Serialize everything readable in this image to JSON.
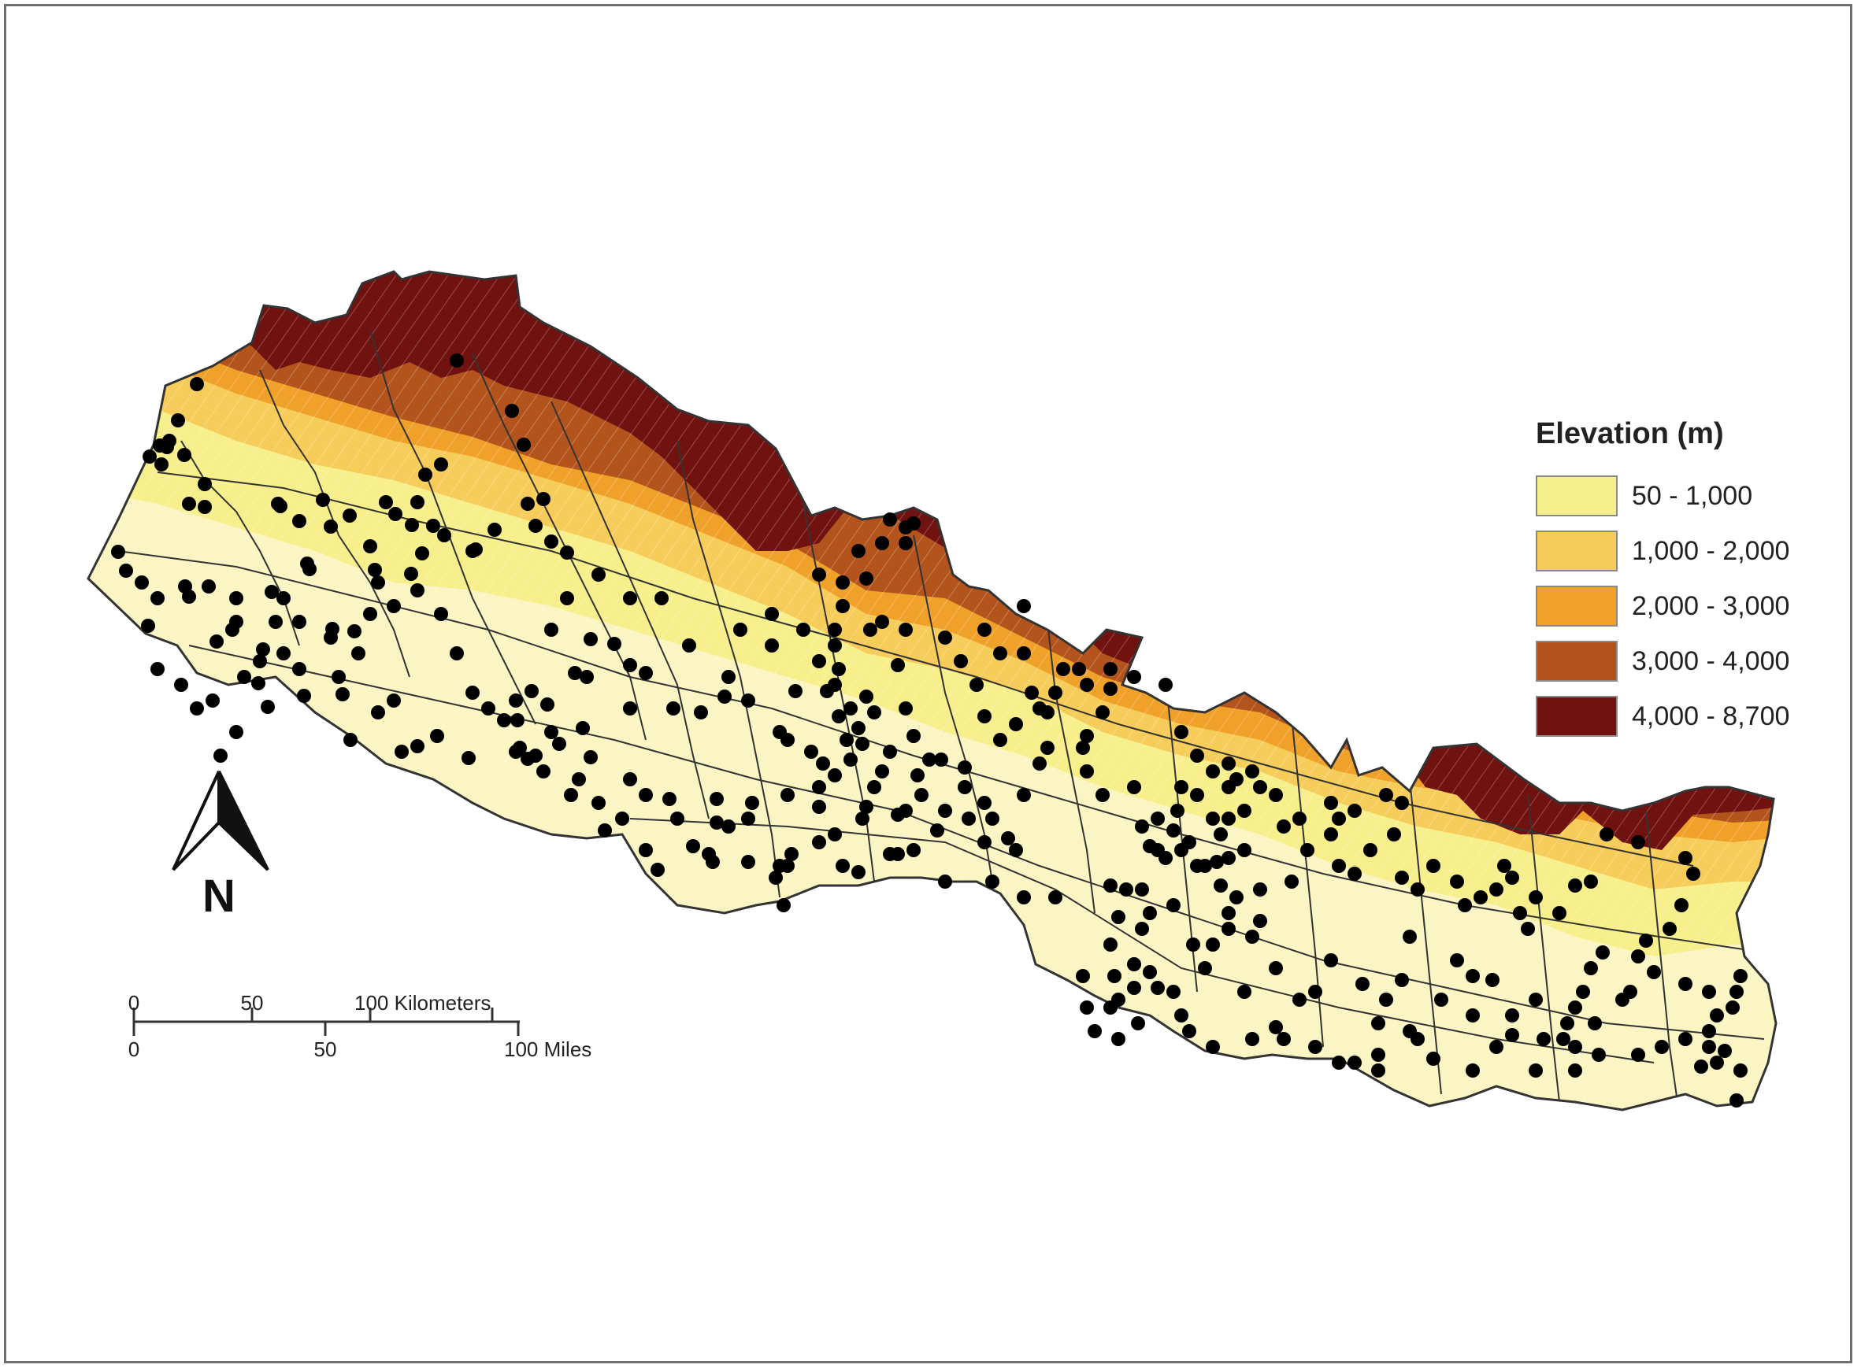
{
  "legend": {
    "title": "Elevation (m)",
    "classes": [
      {
        "label": "50 - 1,000",
        "color": "#f7ef8c"
      },
      {
        "label": "1,000 - 2,000",
        "color": "#f6cc5a"
      },
      {
        "label": "2,000 - 3,000",
        "color": "#efa12a"
      },
      {
        "label": "3,000 - 4,000",
        "color": "#b4541d"
      },
      {
        "label": "4,000 - 8,700",
        "color": "#701210"
      }
    ]
  },
  "north_arrow": {
    "label": "N"
  },
  "scale_bar": {
    "km_ticks": [
      "0",
      "50",
      "100 Kilometers"
    ],
    "mile_ticks": [
      "0",
      "50",
      "100 Miles"
    ]
  },
  "colors": {
    "lowland": "#fbf5c4",
    "border": "#333333",
    "point": "#000000",
    "frame": "#6e6e6e"
  }
}
